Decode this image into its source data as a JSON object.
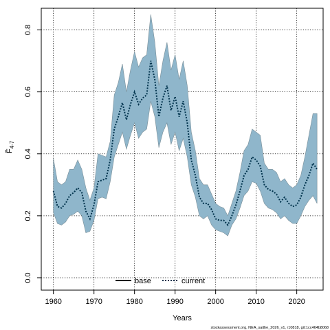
{
  "chart_data": {
    "type": "line",
    "xlabel": "Years",
    "ylabel_main": "F",
    "ylabel_sub": "4-7",
    "xlim": [
      1957,
      2026.5
    ],
    "ylim": [
      -0.04,
      0.87
    ],
    "x_ticks": [
      1960,
      1970,
      1980,
      1990,
      2000,
      2010,
      2020
    ],
    "y_ticks": [
      0.0,
      0.2,
      0.4,
      0.6,
      0.8
    ],
    "y_tick_labels": [
      "0.0",
      "0.2",
      "0.4",
      "0.6",
      "0.8"
    ],
    "grid": true,
    "legend_position": "bottom-center",
    "legend": [
      {
        "label": "base",
        "style": "solid",
        "color": "#000000"
      },
      {
        "label": "current",
        "style": "dotted",
        "color": "#00334d"
      }
    ],
    "band_color": "#8fb6cb",
    "years": [
      1960,
      1961,
      1962,
      1963,
      1964,
      1965,
      1966,
      1967,
      1968,
      1969,
      1970,
      1971,
      1972,
      1973,
      1974,
      1975,
      1976,
      1977,
      1978,
      1979,
      1980,
      1981,
      1982,
      1983,
      1984,
      1985,
      1986,
      1987,
      1988,
      1989,
      1990,
      1991,
      1992,
      1993,
      1994,
      1995,
      1996,
      1997,
      1998,
      1999,
      2000,
      2001,
      2002,
      2003,
      2004,
      2005,
      2006,
      2007,
      2008,
      2009,
      2010,
      2011,
      2012,
      2013,
      2014,
      2015,
      2016,
      2017,
      2018,
      2019,
      2020,
      2021,
      2022,
      2023,
      2024,
      2025
    ],
    "current": [
      0.28,
      0.23,
      0.225,
      0.24,
      0.265,
      0.275,
      0.29,
      0.275,
      0.215,
      0.19,
      0.235,
      0.31,
      0.315,
      0.32,
      0.38,
      0.48,
      0.52,
      0.565,
      0.51,
      0.56,
      0.6,
      0.56,
      0.58,
      0.59,
      0.7,
      0.64,
      0.52,
      0.58,
      0.62,
      0.54,
      0.585,
      0.52,
      0.57,
      0.5,
      0.38,
      0.33,
      0.26,
      0.24,
      0.24,
      0.22,
      0.19,
      0.185,
      0.185,
      0.17,
      0.2,
      0.235,
      0.28,
      0.33,
      0.35,
      0.39,
      0.38,
      0.36,
      0.3,
      0.285,
      0.28,
      0.27,
      0.245,
      0.26,
      0.24,
      0.23,
      0.235,
      0.26,
      0.3,
      0.33,
      0.37,
      0.35
    ],
    "upper": [
      0.385,
      0.31,
      0.3,
      0.31,
      0.35,
      0.35,
      0.38,
      0.35,
      0.29,
      0.25,
      0.29,
      0.4,
      0.395,
      0.39,
      0.44,
      0.59,
      0.63,
      0.69,
      0.6,
      0.67,
      0.73,
      0.68,
      0.71,
      0.72,
      0.85,
      0.76,
      0.62,
      0.7,
      0.76,
      0.67,
      0.72,
      0.64,
      0.7,
      0.62,
      0.47,
      0.41,
      0.32,
      0.3,
      0.3,
      0.27,
      0.24,
      0.23,
      0.225,
      0.2,
      0.24,
      0.28,
      0.34,
      0.41,
      0.43,
      0.48,
      0.47,
      0.46,
      0.37,
      0.35,
      0.35,
      0.34,
      0.31,
      0.32,
      0.3,
      0.29,
      0.3,
      0.33,
      0.39,
      0.46,
      0.53,
      0.53
    ],
    "lower": [
      0.21,
      0.175,
      0.17,
      0.18,
      0.2,
      0.205,
      0.215,
      0.2,
      0.145,
      0.15,
      0.185,
      0.255,
      0.26,
      0.255,
      0.31,
      0.39,
      0.43,
      0.47,
      0.415,
      0.46,
      0.5,
      0.45,
      0.47,
      0.48,
      0.57,
      0.52,
      0.42,
      0.47,
      0.5,
      0.43,
      0.47,
      0.41,
      0.45,
      0.39,
      0.3,
      0.26,
      0.2,
      0.19,
      0.2,
      0.17,
      0.155,
      0.15,
      0.145,
      0.135,
      0.17,
      0.19,
      0.225,
      0.265,
      0.28,
      0.31,
      0.305,
      0.28,
      0.24,
      0.225,
      0.22,
      0.21,
      0.19,
      0.2,
      0.185,
      0.175,
      0.175,
      0.2,
      0.23,
      0.25,
      0.265,
      0.24
    ],
    "footer": "stockassessment.org, NEA_saithe_2026_v1, r10818, git:1cc464b8068"
  }
}
